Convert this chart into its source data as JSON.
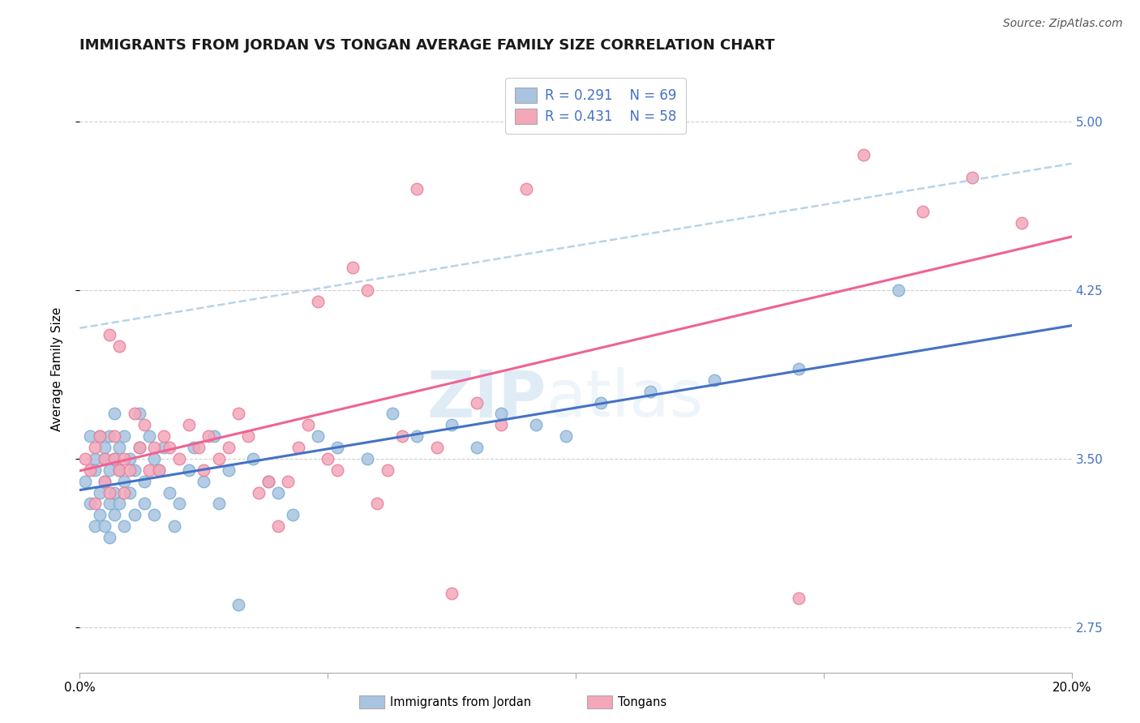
{
  "title": "IMMIGRANTS FROM JORDAN VS TONGAN AVERAGE FAMILY SIZE CORRELATION CHART",
  "source": "Source: ZipAtlas.com",
  "ylabel": "Average Family Size",
  "legend_label_1": "Immigrants from Jordan",
  "legend_label_2": "Tongans",
  "legend_r1": "R = 0.291",
  "legend_n1": "N = 69",
  "legend_r2": "R = 0.431",
  "legend_n2": "N = 58",
  "watermark_zip": "ZIP",
  "watermark_atlas": "atlas",
  "jordan_color": "#a8c4e0",
  "jordan_edge_color": "#7aafd4",
  "tongan_color": "#f4a7b9",
  "tongan_edge_color": "#e87d9a",
  "jordan_line_color": "#4472c4",
  "tongan_line_color": "#f06292",
  "dashed_line_color": "#b0cfe8",
  "right_axis_color": "#4472c4",
  "xlim": [
    0.0,
    0.2
  ],
  "ylim": [
    2.55,
    5.25
  ],
  "yticks": [
    2.75,
    3.5,
    4.25,
    5.0
  ],
  "xticks": [
    0.0,
    0.05,
    0.1,
    0.15,
    0.2
  ],
  "jordan_x": [
    0.001,
    0.002,
    0.002,
    0.003,
    0.003,
    0.003,
    0.004,
    0.004,
    0.004,
    0.005,
    0.005,
    0.005,
    0.005,
    0.006,
    0.006,
    0.006,
    0.006,
    0.007,
    0.007,
    0.007,
    0.007,
    0.008,
    0.008,
    0.008,
    0.009,
    0.009,
    0.009,
    0.01,
    0.01,
    0.011,
    0.011,
    0.012,
    0.012,
    0.013,
    0.013,
    0.014,
    0.015,
    0.015,
    0.016,
    0.017,
    0.018,
    0.019,
    0.02,
    0.022,
    0.023,
    0.025,
    0.027,
    0.028,
    0.03,
    0.032,
    0.035,
    0.038,
    0.04,
    0.043,
    0.048,
    0.052,
    0.058,
    0.063,
    0.068,
    0.075,
    0.08,
    0.085,
    0.092,
    0.098,
    0.105,
    0.115,
    0.128,
    0.145,
    0.165
  ],
  "jordan_y": [
    3.4,
    3.6,
    3.3,
    3.5,
    3.2,
    3.45,
    3.35,
    3.6,
    3.25,
    3.5,
    3.4,
    3.2,
    3.55,
    3.45,
    3.3,
    3.6,
    3.15,
    3.5,
    3.35,
    3.25,
    3.7,
    3.45,
    3.3,
    3.55,
    3.4,
    3.2,
    3.6,
    3.5,
    3.35,
    3.45,
    3.25,
    3.55,
    3.7,
    3.4,
    3.3,
    3.6,
    3.5,
    3.25,
    3.45,
    3.55,
    3.35,
    3.2,
    3.3,
    3.45,
    3.55,
    3.4,
    3.6,
    3.3,
    3.45,
    2.85,
    3.5,
    3.4,
    3.35,
    3.25,
    3.6,
    3.55,
    3.5,
    3.7,
    3.6,
    3.65,
    3.55,
    3.7,
    3.65,
    3.6,
    3.75,
    3.8,
    3.85,
    3.9,
    4.25
  ],
  "tongan_x": [
    0.001,
    0.002,
    0.003,
    0.003,
    0.004,
    0.005,
    0.005,
    0.006,
    0.006,
    0.007,
    0.007,
    0.008,
    0.008,
    0.009,
    0.009,
    0.01,
    0.011,
    0.012,
    0.013,
    0.014,
    0.015,
    0.016,
    0.017,
    0.018,
    0.02,
    0.022,
    0.024,
    0.025,
    0.026,
    0.028,
    0.03,
    0.032,
    0.034,
    0.036,
    0.038,
    0.04,
    0.042,
    0.044,
    0.046,
    0.048,
    0.05,
    0.052,
    0.055,
    0.058,
    0.06,
    0.062,
    0.065,
    0.068,
    0.072,
    0.075,
    0.08,
    0.085,
    0.09,
    0.145,
    0.158,
    0.17,
    0.18,
    0.19
  ],
  "tongan_y": [
    3.5,
    3.45,
    3.55,
    3.3,
    3.6,
    3.4,
    3.5,
    4.05,
    3.35,
    3.5,
    3.6,
    3.45,
    4.0,
    3.35,
    3.5,
    3.45,
    3.7,
    3.55,
    3.65,
    3.45,
    3.55,
    3.45,
    3.6,
    3.55,
    3.5,
    3.65,
    3.55,
    3.45,
    3.6,
    3.5,
    3.55,
    3.7,
    3.6,
    3.35,
    3.4,
    3.2,
    3.4,
    3.55,
    3.65,
    4.2,
    3.5,
    3.45,
    4.35,
    4.25,
    3.3,
    3.45,
    3.6,
    4.7,
    3.55,
    2.9,
    3.75,
    3.65,
    4.7,
    2.88,
    4.85,
    4.6,
    4.75,
    4.55
  ],
  "title_fontsize": 13,
  "axis_label_fontsize": 11,
  "tick_fontsize": 11,
  "legend_fontsize": 12,
  "source_fontsize": 10,
  "background_color": "#ffffff",
  "grid_color": "#d0d0d0"
}
